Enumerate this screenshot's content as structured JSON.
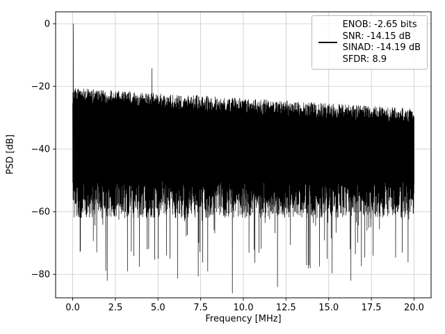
{
  "chart_data": {
    "type": "line",
    "title": "",
    "xlabel": "Frequency [MHz]",
    "ylabel": "PSD [dB]",
    "xlim": [
      -1.0,
      21.0
    ],
    "ylim": [
      -87.5,
      3.8
    ],
    "data_x_range": [
      0.0,
      20.0
    ],
    "x_ticks": [
      0.0,
      2.5,
      5.0,
      7.5,
      10.0,
      12.5,
      15.0,
      17.5,
      20.0
    ],
    "x_tick_labels": [
      "0.0",
      "2.5",
      "5.0",
      "7.5",
      "10.0",
      "12.5",
      "15.0",
      "17.5",
      "20.0"
    ],
    "y_ticks": [
      0,
      -20,
      -40,
      -60,
      -80
    ],
    "y_tick_labels": [
      "0",
      "−20",
      "−40",
      "−60",
      "−80"
    ],
    "grid": true,
    "grid_color": "#c9c9c9",
    "line_color": "#000000",
    "legend_position": "upper right",
    "legend_lines": [
      "ENOB: -2.65 bits",
      "SNR: -14.15 dB",
      "SINAD: -14.19 dB",
      "SFDR: 8.9"
    ],
    "metrics": {
      "enob_bits": -2.65,
      "snr_db": -14.15,
      "sinad_db": -14.19,
      "sfdr": 8.9
    },
    "signal_peak": {
      "x": 0.05,
      "y": 0.0
    },
    "spur_peak": {
      "x": 4.65,
      "y": -14.3
    },
    "peaks_up": [
      {
        "x": 0.05,
        "y": 0.0
      },
      {
        "x": 0.35,
        "y": -21.0
      },
      {
        "x": 1.55,
        "y": -21.5
      },
      {
        "x": 2.1,
        "y": -24.0
      },
      {
        "x": 4.65,
        "y": -14.3
      },
      {
        "x": 5.55,
        "y": -23.5
      },
      {
        "x": 6.9,
        "y": -25.5
      },
      {
        "x": 8.3,
        "y": -25.5
      },
      {
        "x": 10.9,
        "y": -26.5
      },
      {
        "x": 13.6,
        "y": -27.0
      },
      {
        "x": 15.8,
        "y": -26.5
      },
      {
        "x": 17.3,
        "y": -27.5
      },
      {
        "x": 18.4,
        "y": -28.0
      }
    ],
    "spikes_down": [
      {
        "x": 3.2,
        "y": -79.0
      },
      {
        "x": 5.0,
        "y": -75.0
      },
      {
        "x": 7.9,
        "y": -79.0
      },
      {
        "x": 9.35,
        "y": -86.0
      },
      {
        "x": 12.0,
        "y": -84.0
      },
      {
        "x": 13.7,
        "y": -77.0
      },
      {
        "x": 14.9,
        "y": -75.0
      },
      {
        "x": 16.3,
        "y": -82.0
      },
      {
        "x": 17.6,
        "y": -74.0
      },
      {
        "x": 19.3,
        "y": -73.0
      }
    ],
    "noise": {
      "seed": 7,
      "points": 1400,
      "top_start": -23.0,
      "top_end": -29.5,
      "top_jitter": 2.5,
      "bottom_base": -50.0,
      "bottom_jitter": 12.0,
      "deep_prob": 0.06,
      "deep_extra": 24.0
    }
  }
}
